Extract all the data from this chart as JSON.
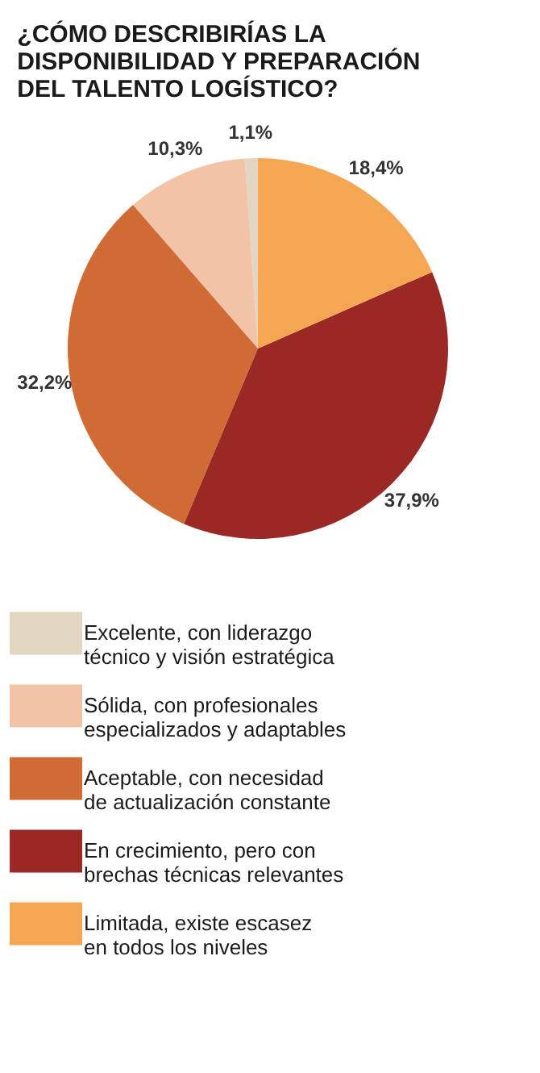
{
  "chart_data": {
    "type": "pie",
    "title": "¿CÓMO DESCRIBIRÍAS LA DISPONIBILIDAD Y PREPARACIÓN DEL TALENTO LOGÍSTICO?",
    "categories": [
      "Excelente, con liderazgo técnico y visión estratégica",
      "Sólida, con profesionales especializados y adaptables",
      "Aceptable, con necesidad de actualización constante",
      "En crecimiento, pero con brechas técnicas relevantes",
      "Limitada, existe escasez en todos los niveles"
    ],
    "values": [
      1.1,
      10.3,
      32.2,
      37.9,
      18.4
    ],
    "value_labels": [
      "1,1%",
      "10,3%",
      "32,2%",
      "37,9%",
      "18,4%"
    ],
    "colors": [
      "#e0d6c2",
      "#f3c3a8",
      "#d06b36",
      "#9a2926",
      "#f4a653"
    ],
    "legend": "bottom"
  }
}
